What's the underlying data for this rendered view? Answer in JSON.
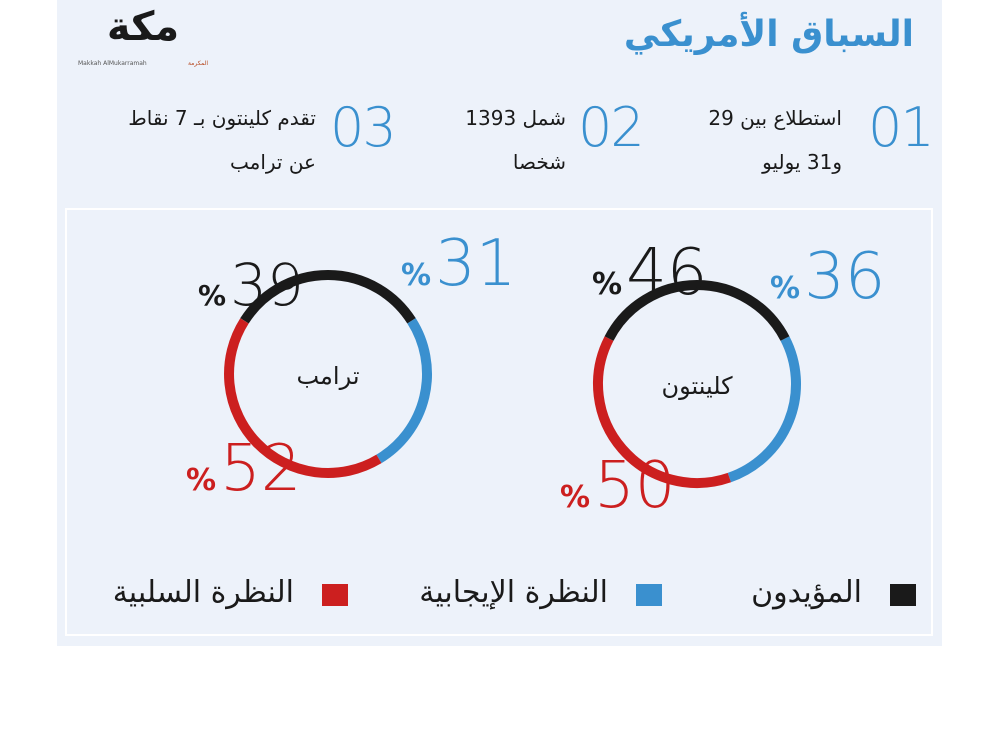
{
  "title": "السباق الأمريكي",
  "logo": {
    "main": "مكة",
    "latin": "Makkah AlMukarramah",
    "arabic": "المكرمة"
  },
  "facts": [
    {
      "num": "01",
      "line1": "استطلاع بين 29",
      "line2": "و31 يوليو"
    },
    {
      "num": "02",
      "line1": "شمل 1393",
      "line2": "شخصا"
    },
    {
      "num": "03",
      "line1": "تقدم كلينتون بـ 7 نقاط",
      "line2": "عن ترامب"
    }
  ],
  "colors": {
    "supporters": "#1a1a1a",
    "positive": "#3a90cf",
    "negative": "#cc1f1f"
  },
  "chart_data": [
    {
      "type": "pie",
      "center_label": "كلينتون",
      "series": [
        {
          "name": "المؤيدون",
          "value": 46,
          "color": "#1a1a1a"
        },
        {
          "name": "النظرة الإيجابية",
          "value": 36,
          "color": "#3a90cf"
        },
        {
          "name": "النظرة السلبية",
          "value": 50,
          "color": "#cc1f1f"
        }
      ],
      "unit": "%"
    },
    {
      "type": "pie",
      "center_label": "ترامب",
      "series": [
        {
          "name": "المؤيدون",
          "value": 39,
          "color": "#1a1a1a"
        },
        {
          "name": "النظرة الإيجابية",
          "value": 31,
          "color": "#3a90cf"
        },
        {
          "name": "النظرة السلبية",
          "value": 52,
          "color": "#cc1f1f"
        }
      ],
      "unit": "%"
    }
  ],
  "legend": [
    {
      "label": "المؤيدون",
      "color": "#1a1a1a"
    },
    {
      "label": "النظرة الإيجابية",
      "color": "#3a90cf"
    },
    {
      "label": "النظرة السلبية",
      "color": "#cc1f1f"
    }
  ]
}
